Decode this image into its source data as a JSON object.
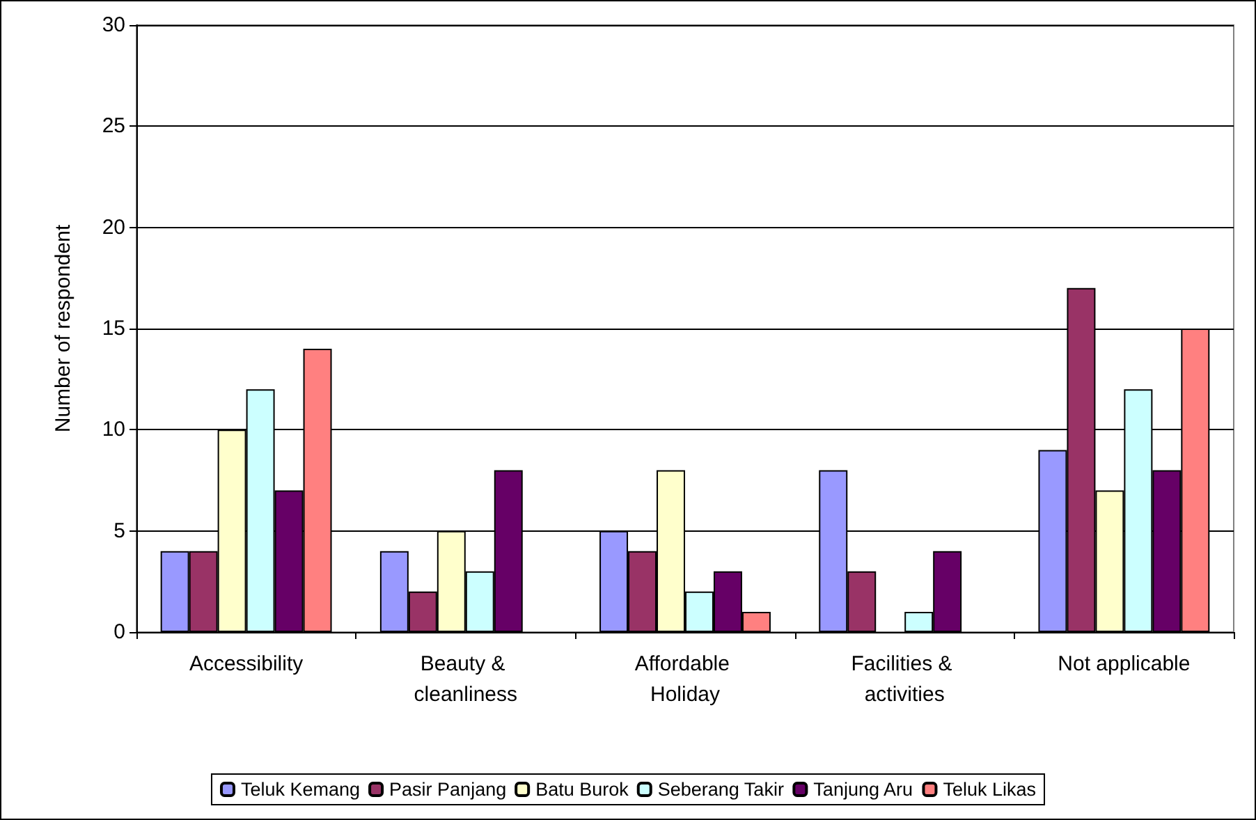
{
  "chart_data": {
    "type": "bar",
    "ylabel": "Number of respondent",
    "categories": [
      "Accessibility",
      "Beauty & cleanliness",
      "Affordable Holiday",
      "Facilities & activities",
      "Not applicable"
    ],
    "series": [
      {
        "name": "Teluk Kemang",
        "color": "#9999ff",
        "values": [
          4,
          4,
          5,
          8,
          9
        ]
      },
      {
        "name": "Pasir Panjang",
        "color": "#993366",
        "values": [
          4,
          2,
          4,
          3,
          17
        ]
      },
      {
        "name": "Batu Burok",
        "color": "#ffffcc",
        "values": [
          10,
          5,
          8,
          0,
          7
        ]
      },
      {
        "name": "Seberang Takir",
        "color": "#ccffff",
        "values": [
          12,
          3,
          2,
          1,
          12
        ]
      },
      {
        "name": "Tanjung Aru",
        "color": "#660066",
        "values": [
          7,
          8,
          3,
          4,
          8
        ]
      },
      {
        "name": "Teluk Likas",
        "color": "#ff8080",
        "values": [
          14,
          0,
          1,
          0,
          15
        ]
      }
    ],
    "ylim": [
      0,
      30
    ],
    "yticks": [
      0,
      5,
      10,
      15,
      20,
      25,
      30
    ],
    "grid": "y",
    "legend": "bottom"
  }
}
